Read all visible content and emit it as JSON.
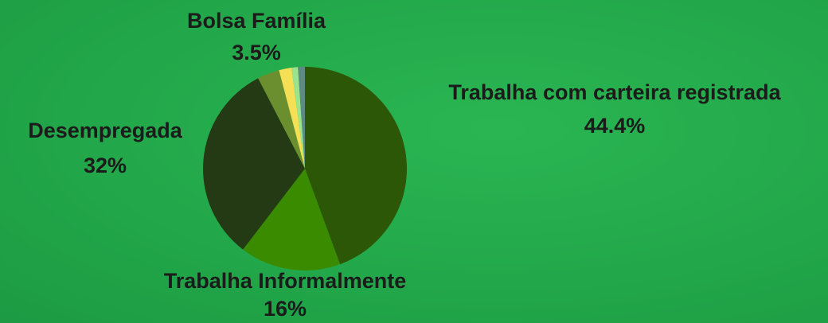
{
  "chart_data": {
    "type": "pie",
    "categories": [
      "Trabalha com carteira registrada",
      "Trabalha Informalmente",
      "Desempregada",
      "Bolsa Família",
      null,
      null,
      null
    ],
    "values": [
      44.4,
      16,
      32,
      3.5,
      2,
      1,
      1.1
    ],
    "value_labels": [
      "44.4%",
      "16%",
      "32%",
      "3.5%",
      null,
      null,
      null
    ],
    "colors": [
      "#2b5706",
      "#3a8b00",
      "#243a14",
      "#6b8f2e",
      "#f4df55",
      "#9be38c",
      "#5e8a86"
    ]
  }
}
